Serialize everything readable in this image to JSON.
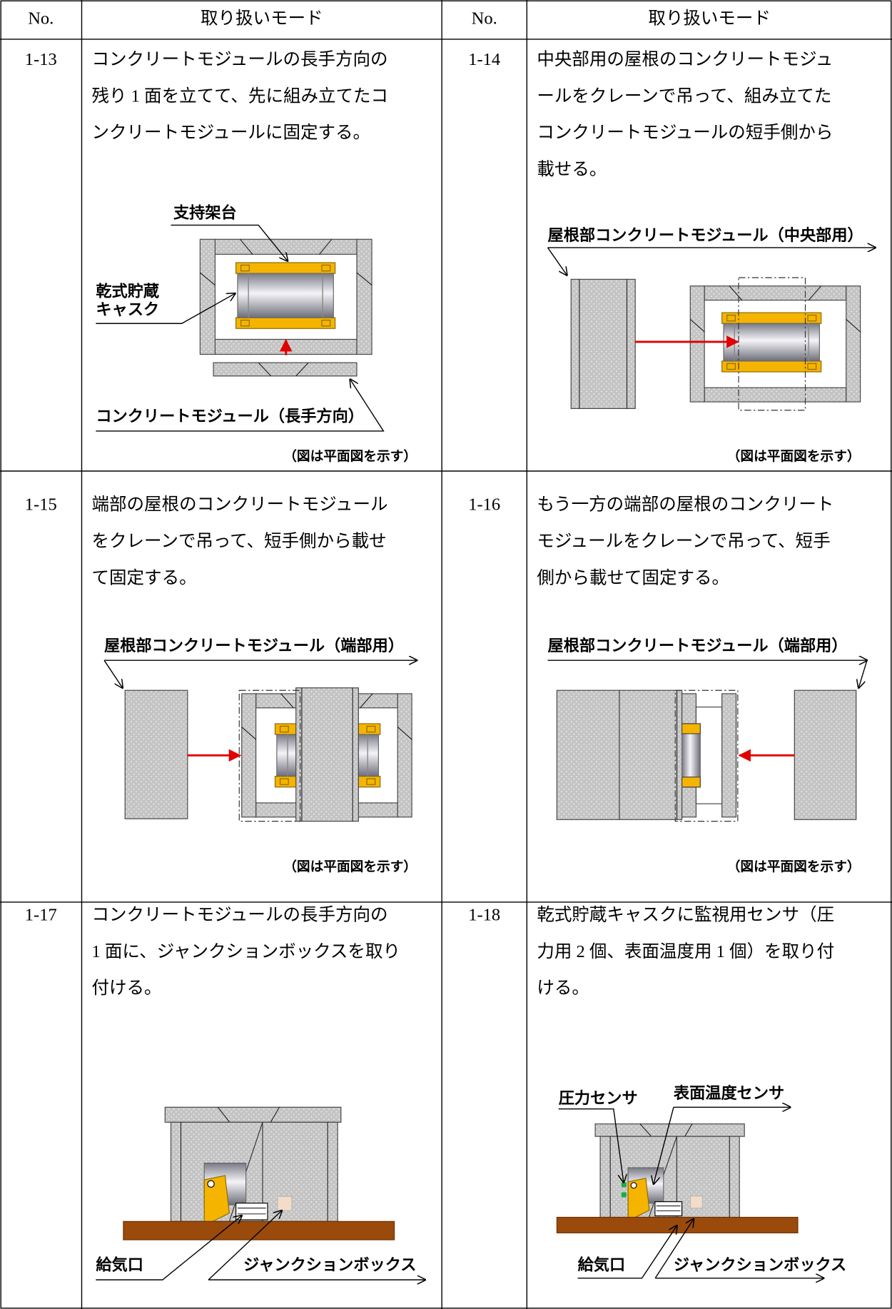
{
  "table": {
    "header": [
      "No.",
      "取り扱いモード",
      "No.",
      "取り扱いモード"
    ],
    "rows": [
      {
        "no": "1-13",
        "lines": [
          "コンクリートモジュールの長手方向の",
          "残り 1 面を立てて、先に組み立てたコ",
          "ンクリートモジュールに固定する。"
        ],
        "labels": [
          "支持架台",
          "乾式貯蔵",
          "キャスク",
          "コンクリートモジュール（長手方向）"
        ],
        "caption": "（図は平面図を示す）"
      },
      {
        "no": "1-14",
        "lines": [
          "中央部用の屋根のコンクリートモジュ",
          "ールをクレーンで吊って、組み立てた",
          "コンクリートモジュールの短手側から",
          "載せる。"
        ],
        "labels": [
          "屋根部コンクリートモジュール（中央部用）"
        ],
        "caption": "（図は平面図を示す）"
      },
      {
        "no": "1-15",
        "lines": [
          "端部の屋根のコンクリートモジュール",
          "をクレーンで吊って、短手側から載せ",
          "て固定する。"
        ],
        "labels": [
          "屋根部コンクリートモジュール（端部用）"
        ],
        "caption": "（図は平面図を示す）"
      },
      {
        "no": "1-16",
        "lines": [
          "もう一方の端部の屋根のコンクリート",
          "モジュールをクレーンで吊って、短手",
          "側から載せて固定する。"
        ],
        "labels": [
          "屋根部コンクリートモジュール（端部用）"
        ],
        "caption": "（図は平面図を示す）"
      },
      {
        "no": "1-17",
        "lines": [
          "コンクリートモジュールの長手方向の",
          "1 面に、ジャンクションボックスを取り",
          "付ける。"
        ],
        "labels": [
          "給気口",
          "ジャンクションボックス"
        ]
      },
      {
        "no": "1-18",
        "lines": [
          "乾式貯蔵キャスクに監視用センサ（圧",
          "力用 2 個、表面温度用 1 個）を取り付",
          "ける。"
        ],
        "labels": [
          "圧力センサ",
          "表面温度センサ",
          "給気口",
          "ジャンクションボックス"
        ]
      }
    ]
  }
}
